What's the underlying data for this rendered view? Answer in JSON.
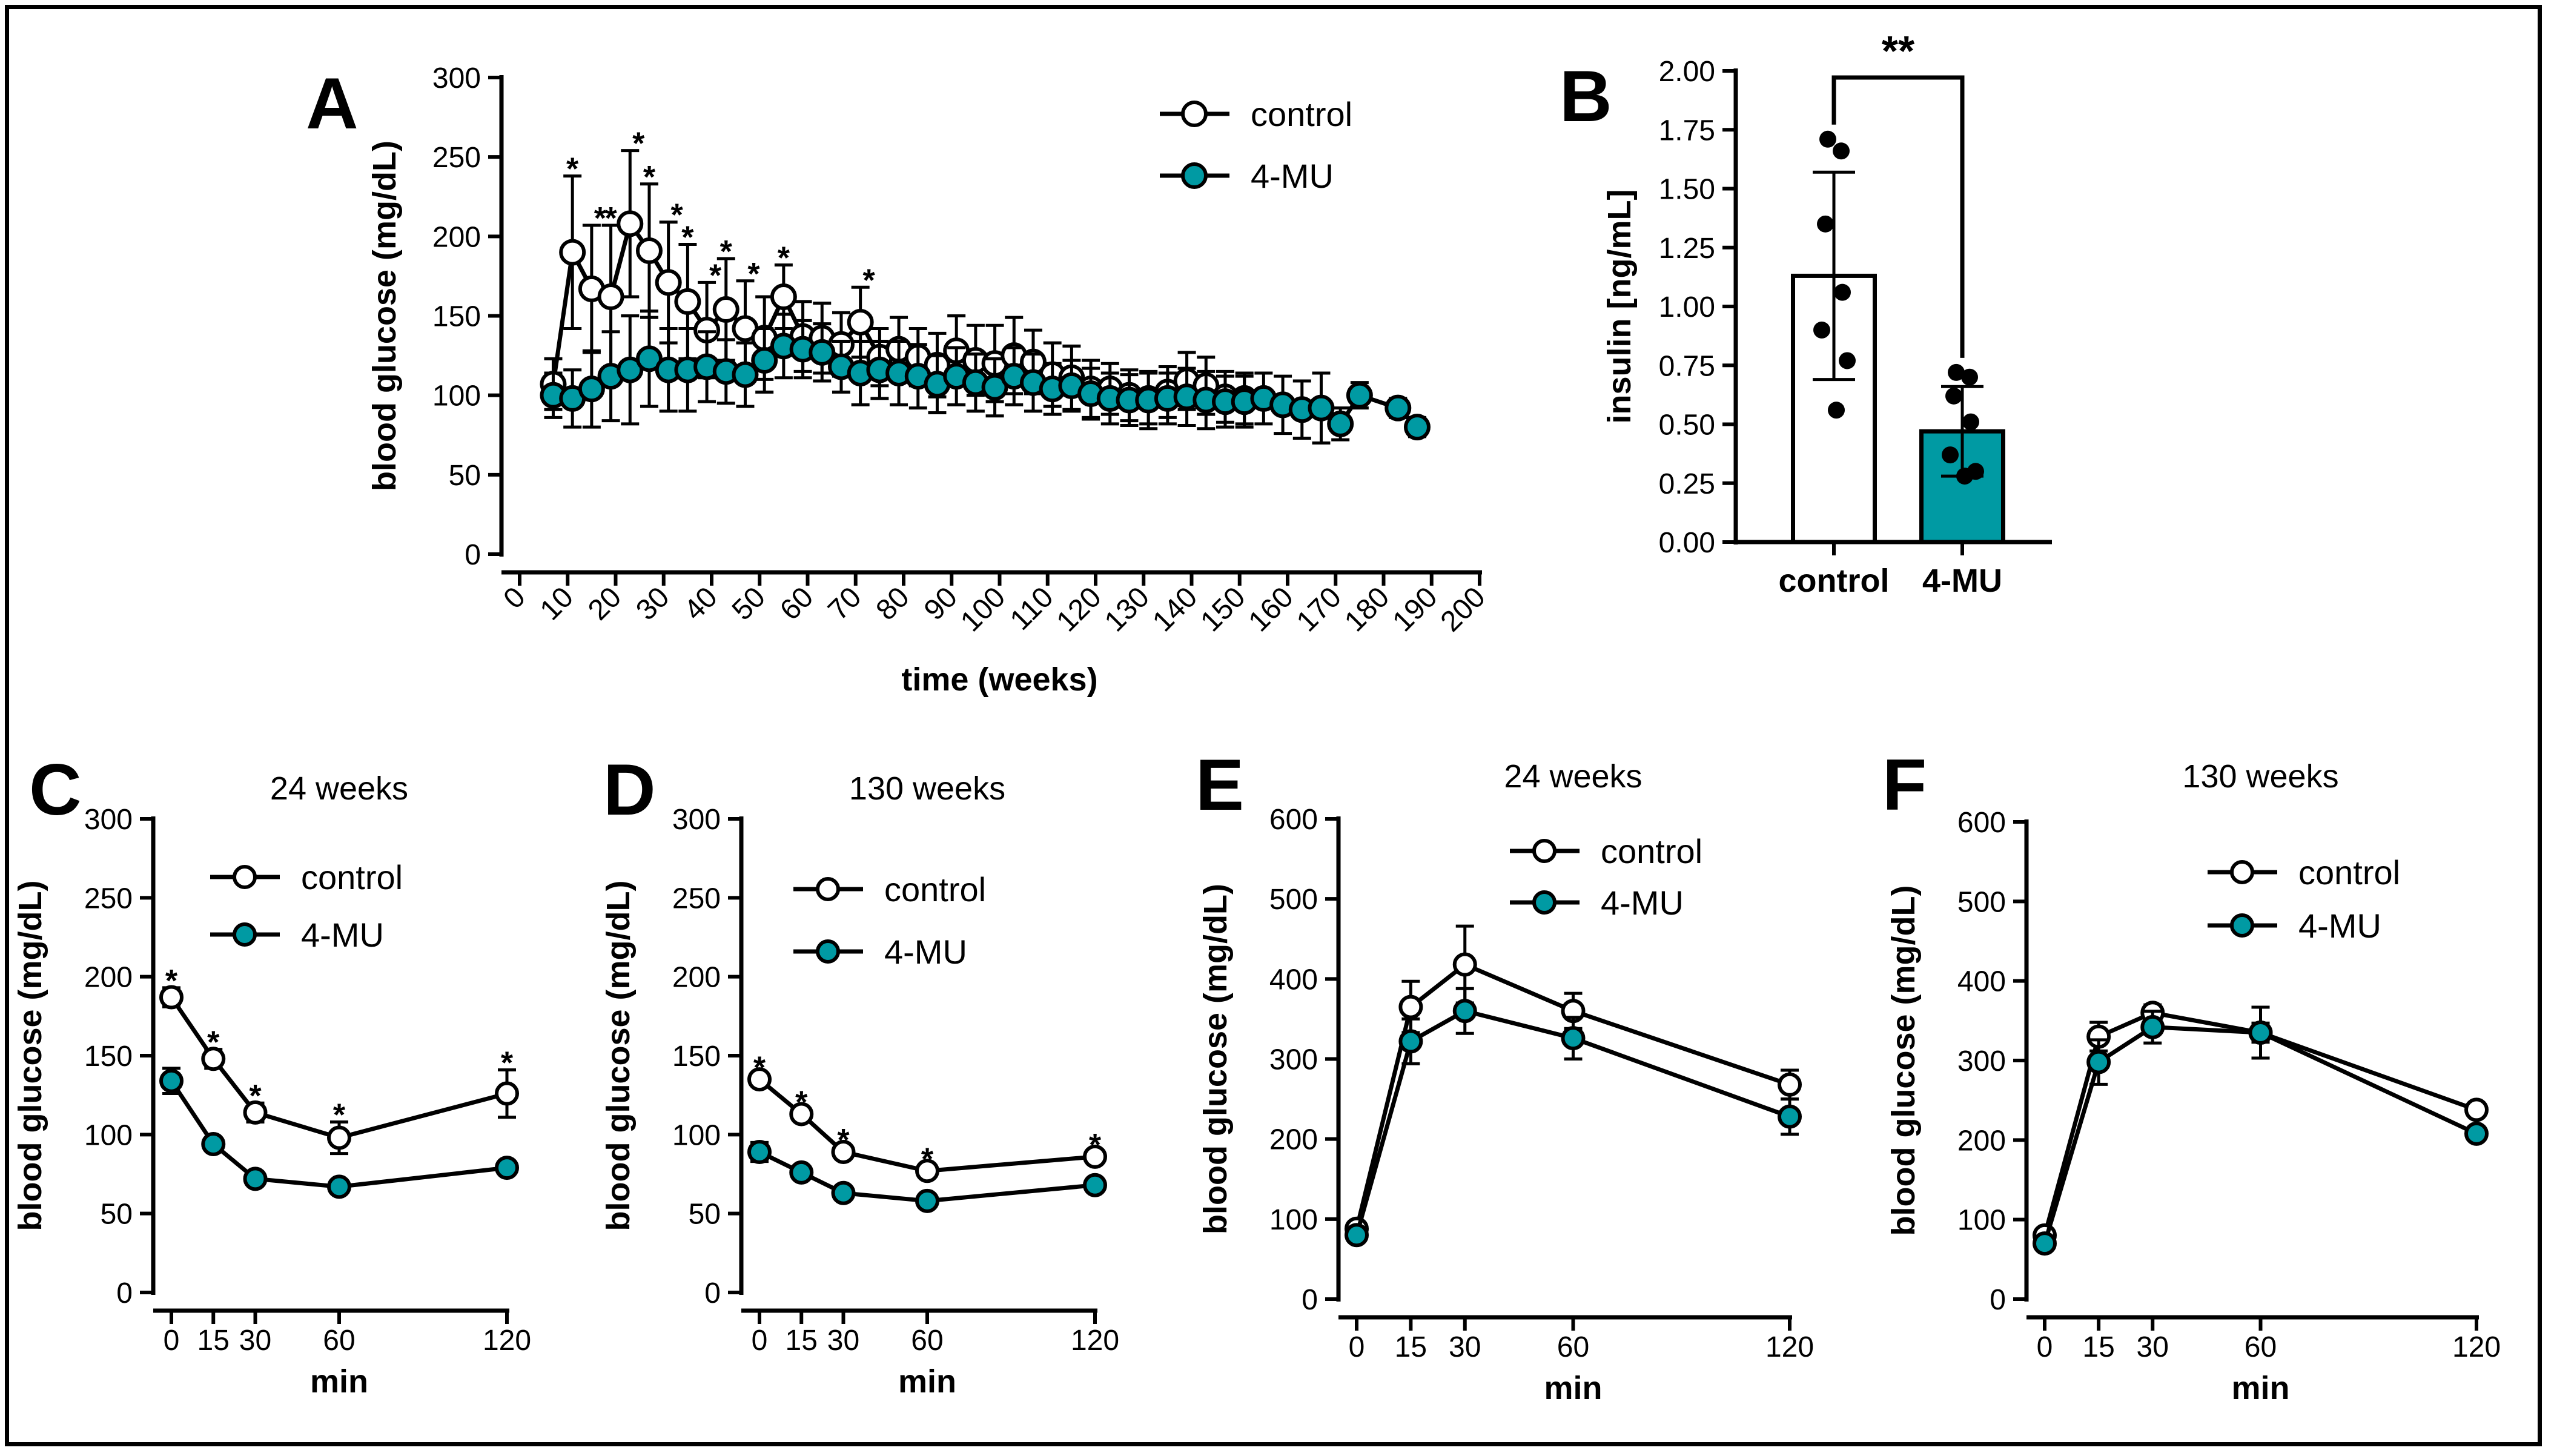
{
  "colors": {
    "control_fill": "#ffffff",
    "treat_fill": "#009aa3",
    "line": "#000000"
  },
  "chart_data": [
    {
      "id": "A",
      "type": "line",
      "panel_letter": "A",
      "title": "",
      "xlabel": "time (weeks)",
      "ylabel": "blood glucose (mg/dL)",
      "xlim": [
        0,
        200
      ],
      "ylim": [
        0,
        300
      ],
      "xticks": [
        0,
        10,
        20,
        30,
        40,
        50,
        60,
        70,
        80,
        90,
        100,
        110,
        120,
        130,
        140,
        150,
        160,
        170,
        180,
        190,
        200
      ],
      "yticks": [
        0,
        50,
        100,
        150,
        200,
        250,
        300
      ],
      "legend": [
        "control",
        "4-MU"
      ],
      "series": [
        {
          "name": "control",
          "points": [
            [
              7,
              107,
              16
            ],
            [
              11,
              190,
              48
            ],
            [
              15,
              167,
              40
            ],
            [
              19,
              162,
              45
            ],
            [
              23,
              208,
              46
            ],
            [
              27,
              191,
              42
            ],
            [
              31,
              171,
              38
            ],
            [
              35,
              159,
              36
            ],
            [
              39,
              141,
              30
            ],
            [
              43,
              154,
              32
            ],
            [
              47,
              142,
              30
            ],
            [
              51,
              136,
              26
            ],
            [
              55,
              162,
              20
            ],
            [
              59,
              137,
              22
            ],
            [
              63,
              136,
              22
            ],
            [
              67,
              132,
              20
            ],
            [
              71,
              146,
              22
            ],
            [
              75,
              124,
              18
            ],
            [
              79,
              129,
              20
            ],
            [
              83,
              124,
              18
            ],
            [
              87,
              119,
              20
            ],
            [
              91,
              128,
              22
            ],
            [
              95,
              122,
              22
            ],
            [
              99,
              120,
              24
            ],
            [
              103,
              125,
              24
            ],
            [
              107,
              121,
              20
            ],
            [
              111,
              113,
              20
            ],
            [
              115,
              111,
              20
            ],
            [
              119,
              104,
              18
            ],
            [
              123,
              104,
              16
            ],
            [
              127,
              100,
              16
            ],
            [
              131,
              98,
              16
            ],
            [
              135,
              102,
              16
            ],
            [
              139,
              109,
              18
            ],
            [
              143,
              106,
              18
            ],
            [
              147,
              99,
              16
            ],
            [
              151,
              98,
              16
            ]
          ]
        },
        {
          "name": "4-MU",
          "points": [
            [
              7,
              100,
              14
            ],
            [
              11,
              98,
              18
            ],
            [
              15,
              104,
              24
            ],
            [
              19,
              112,
              28
            ],
            [
              23,
              116,
              34
            ],
            [
              27,
              123,
              30
            ],
            [
              31,
              116,
              26
            ],
            [
              35,
              116,
              26
            ],
            [
              39,
              118,
              22
            ],
            [
              43,
              115,
              20
            ],
            [
              47,
              113,
              20
            ],
            [
              51,
              122,
              20
            ],
            [
              55,
              131,
              20
            ],
            [
              59,
              129,
              18
            ],
            [
              63,
              127,
              18
            ],
            [
              67,
              118,
              16
            ],
            [
              71,
              114,
              20
            ],
            [
              75,
              116,
              18
            ],
            [
              79,
              114,
              20
            ],
            [
              83,
              112,
              20
            ],
            [
              87,
              107,
              18
            ],
            [
              91,
              112,
              18
            ],
            [
              95,
              108,
              18
            ],
            [
              99,
              105,
              18
            ],
            [
              103,
              112,
              18
            ],
            [
              107,
              108,
              18
            ],
            [
              111,
              104,
              16
            ],
            [
              115,
              106,
              16
            ],
            [
              119,
              101,
              16
            ],
            [
              123,
              98,
              16
            ],
            [
              127,
              97,
              16
            ],
            [
              131,
              97,
              18
            ],
            [
              135,
              98,
              16
            ],
            [
              139,
              99,
              18
            ],
            [
              143,
              97,
              18
            ],
            [
              147,
              96,
              16
            ],
            [
              151,
              96,
              16
            ],
            [
              155,
              98,
              16
            ],
            [
              159,
              94,
              18
            ],
            [
              163,
              91,
              18
            ],
            [
              167,
              92,
              22
            ],
            [
              171,
              82,
              10
            ],
            [
              175,
              100,
              8
            ],
            [
              183,
              92,
              6
            ],
            [
              187,
              80,
              6
            ]
          ]
        }
      ],
      "annotations": [
        {
          "x": 11,
          "text": "*"
        },
        {
          "x": 15,
          "text": "*"
        },
        {
          "x": 19,
          "text": "*"
        },
        {
          "x": 23,
          "text": "*"
        },
        {
          "x": 27,
          "text": "*"
        },
        {
          "x": 31,
          "text": "*"
        },
        {
          "x": 35,
          "text": "*"
        },
        {
          "x": 39,
          "text": "*"
        },
        {
          "x": 43,
          "text": "*"
        },
        {
          "x": 47,
          "text": "*"
        },
        {
          "x": 55,
          "text": "*"
        },
        {
          "x": 71,
          "text": "*"
        }
      ]
    },
    {
      "id": "B",
      "type": "bar",
      "panel_letter": "B",
      "ylabel": "insulin [ng/mL]",
      "ylim": [
        0,
        2.0
      ],
      "yticks": [
        "0.00",
        "0.25",
        "0.50",
        "0.75",
        "1.00",
        "1.25",
        "1.50",
        "1.75",
        "2.00"
      ],
      "categories": [
        "control",
        "4-MU"
      ],
      "values": [
        1.13,
        0.47
      ],
      "sd": [
        0.44,
        0.19
      ],
      "points": [
        [
          1.71,
          1.66,
          1.35,
          1.06,
          0.9,
          0.77,
          0.56
        ],
        [
          0.72,
          0.7,
          0.62,
          0.51,
          0.37,
          0.3,
          0.28
        ]
      ],
      "significance": "**"
    },
    {
      "id": "C",
      "type": "line",
      "panel_letter": "C",
      "title": "24 weeks",
      "xlabel": "min",
      "ylabel": "blood glucose (mg/dL)",
      "xlim": [
        0,
        120
      ],
      "ylim": [
        0,
        300
      ],
      "xticks": [
        "0",
        "15",
        "30",
        "60",
        "120"
      ],
      "xtick_values": [
        0,
        15,
        30,
        60,
        120
      ],
      "yticks": [
        0,
        50,
        100,
        150,
        200,
        250,
        300
      ],
      "legend": [
        "control",
        "4-MU"
      ],
      "series": [
        {
          "name": "control",
          "x": [
            0,
            15,
            30,
            60,
            120
          ],
          "values": [
            187,
            148,
            114,
            98,
            126
          ],
          "err": [
            6,
            6,
            6,
            10,
            15
          ]
        },
        {
          "name": "4-MU",
          "x": [
            0,
            15,
            30,
            60,
            120
          ],
          "values": [
            134,
            94,
            72,
            67,
            79
          ],
          "err": [
            8,
            4,
            3,
            3,
            3
          ]
        }
      ],
      "annotations": [
        {
          "x": 0,
          "text": "*"
        },
        {
          "x": 15,
          "text": "*"
        },
        {
          "x": 30,
          "text": "*"
        },
        {
          "x": 60,
          "text": "*"
        },
        {
          "x": 120,
          "text": "*"
        }
      ]
    },
    {
      "id": "D",
      "type": "line",
      "panel_letter": "D",
      "title": "130 weeks",
      "xlabel": "min",
      "ylabel": "blood glucose (mg/dL)",
      "xlim": [
        0,
        120
      ],
      "ylim": [
        0,
        300
      ],
      "xticks": [
        "0",
        "15",
        "30",
        "60",
        "120"
      ],
      "xtick_values": [
        0,
        15,
        30,
        60,
        120
      ],
      "yticks": [
        0,
        50,
        100,
        150,
        200,
        250,
        300
      ],
      "legend": [
        "control",
        "4-MU"
      ],
      "series": [
        {
          "name": "control",
          "x": [
            0,
            15,
            30,
            60,
            120
          ],
          "values": [
            135,
            113,
            89,
            77,
            86
          ],
          "err": [
            3,
            3,
            3,
            3,
            3
          ]
        },
        {
          "name": "4-MU",
          "x": [
            0,
            15,
            30,
            60,
            120
          ],
          "values": [
            89,
            76,
            63,
            58,
            68
          ],
          "err": [
            6,
            3,
            3,
            2,
            2
          ]
        }
      ],
      "annotations": [
        {
          "x": 0,
          "text": "*"
        },
        {
          "x": 15,
          "text": "*"
        },
        {
          "x": 30,
          "text": "*"
        },
        {
          "x": 60,
          "text": "*"
        },
        {
          "x": 120,
          "text": "*"
        }
      ]
    },
    {
      "id": "E",
      "type": "line",
      "panel_letter": "E",
      "title": "24 weeks",
      "xlabel": "min",
      "ylabel": "blood glucose (mg/dL)",
      "xlim": [
        0,
        120
      ],
      "ylim": [
        0,
        600
      ],
      "xticks": [
        "0",
        "15",
        "30",
        "60",
        "120"
      ],
      "xtick_values": [
        0,
        15,
        30,
        60,
        120
      ],
      "yticks": [
        0,
        100,
        200,
        300,
        400,
        500,
        600
      ],
      "legend": [
        "control",
        "4-MU"
      ],
      "series": [
        {
          "name": "control",
          "x": [
            0,
            15,
            30,
            60,
            120
          ],
          "values": [
            88,
            365,
            418,
            360,
            268
          ],
          "err": [
            6,
            32,
            48,
            22,
            18
          ]
        },
        {
          "name": "4-MU",
          "x": [
            0,
            15,
            30,
            60,
            120
          ],
          "values": [
            80,
            322,
            360,
            326,
            228
          ],
          "err": [
            6,
            28,
            28,
            26,
            22
          ]
        }
      ],
      "annotations": []
    },
    {
      "id": "F",
      "type": "line",
      "panel_letter": "F",
      "title": "130 weeks",
      "xlabel": "min",
      "ylabel": "blood glucose (mg/dL)",
      "xlim": [
        0,
        120
      ],
      "ylim": [
        0,
        600
      ],
      "xticks": [
        "0",
        "15",
        "30",
        "60",
        "120"
      ],
      "xtick_values": [
        0,
        15,
        30,
        60,
        120
      ],
      "yticks": [
        0,
        100,
        200,
        300,
        400,
        500,
        600
      ],
      "legend": [
        "control",
        "4-MU"
      ],
      "series": [
        {
          "name": "control",
          "x": [
            0,
            15,
            30,
            60,
            120
          ],
          "values": [
            80,
            330,
            360,
            335,
            238
          ],
          "err": [
            6,
            18,
            10,
            12,
            8
          ]
        },
        {
          "name": "4-MU",
          "x": [
            0,
            15,
            30,
            60,
            120
          ],
          "values": [
            70,
            298,
            342,
            335,
            208
          ],
          "err": [
            6,
            28,
            20,
            32,
            8
          ]
        }
      ],
      "annotations": []
    }
  ]
}
